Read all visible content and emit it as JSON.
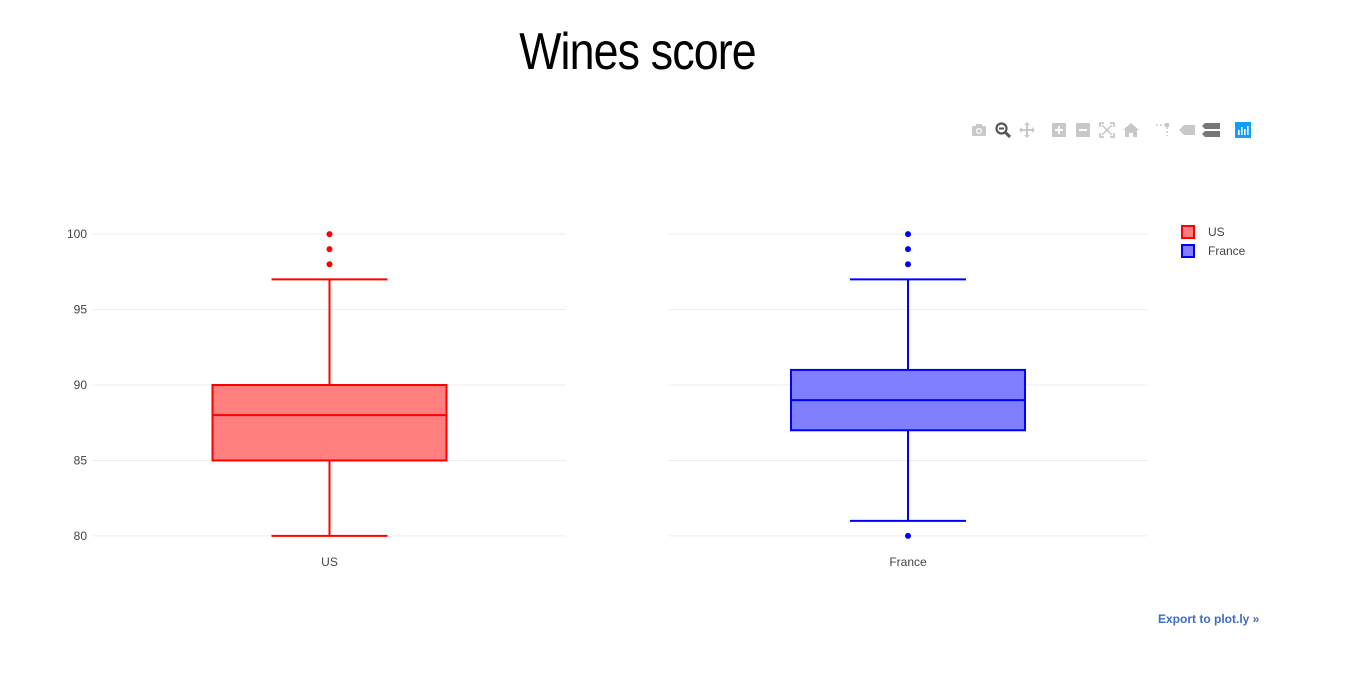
{
  "title": "Wines score",
  "modebar": {
    "icons": [
      "camera-icon",
      "zoom-icon",
      "pan-icon",
      "zoom-in-icon",
      "zoom-out-icon",
      "autoscale-icon",
      "reset-axes-icon",
      "spike-lines-icon",
      "hover-closest-icon",
      "hover-compare-icon",
      "plotly-logo-icon"
    ]
  },
  "export_label": "Export to plot.ly »",
  "colors": {
    "us": "#ff0000",
    "us_fill": "#ff7f7f",
    "france": "#0000ff",
    "france_fill": "#7f7fff",
    "grid": "#eeeeee"
  },
  "chart_data": [
    {
      "type": "box",
      "title": "",
      "category": "US",
      "series": [
        {
          "name": "US",
          "min": 80,
          "q1": 85,
          "median": 88,
          "q3": 90,
          "max": 97,
          "outliers": [
            98,
            99,
            100
          ]
        }
      ],
      "yticks": [
        80,
        85,
        90,
        95,
        100
      ],
      "ylim": [
        79,
        101
      ],
      "grid": true
    },
    {
      "type": "box",
      "title": "",
      "category": "France",
      "series": [
        {
          "name": "France",
          "min": 81,
          "q1": 87,
          "median": 89,
          "q3": 91,
          "max": 97,
          "outliers": [
            80,
            98,
            99,
            100
          ]
        }
      ],
      "yticks": [
        80,
        85,
        90,
        95,
        100
      ],
      "ylim": [
        79,
        101
      ],
      "grid": true
    }
  ],
  "legend": {
    "position": "top-right",
    "items": [
      {
        "name": "US",
        "color": "#ff0000",
        "fill": "#ff7f7f"
      },
      {
        "name": "France",
        "color": "#0000ff",
        "fill": "#7f7fff"
      }
    ]
  }
}
